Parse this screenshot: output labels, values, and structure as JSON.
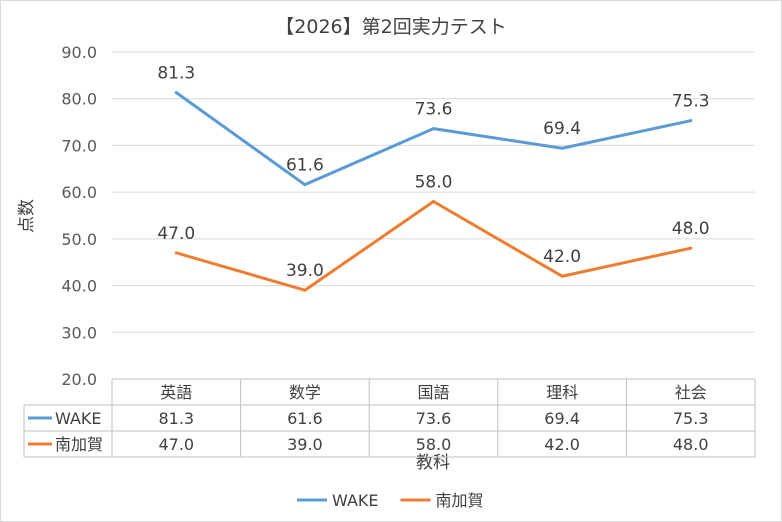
{
  "chart_data": {
    "type": "line",
    "title": "【2026】第2回実力テスト",
    "xlabel": "教科",
    "ylabel": "点数",
    "categories": [
      "英語",
      "数学",
      "国語",
      "理科",
      "社会"
    ],
    "ylim": [
      20,
      90
    ],
    "yticks": [
      "20.0",
      "30.0",
      "40.0",
      "50.0",
      "60.0",
      "70.0",
      "80.0",
      "90.0"
    ],
    "grid": true,
    "legend_position": "bottom",
    "data_table": true,
    "series": [
      {
        "name": "WAKE",
        "color": "#5b9bd5",
        "values": [
          81.3,
          61.6,
          73.6,
          69.4,
          75.3
        ],
        "labels": [
          "81.3",
          "61.6",
          "73.6",
          "69.4",
          "75.3"
        ]
      },
      {
        "name": "南加賀",
        "color": "#ed7d31",
        "values": [
          47.0,
          39.0,
          58.0,
          42.0,
          48.0
        ],
        "labels": [
          "47.0",
          "39.0",
          "58.0",
          "42.0",
          "48.0"
        ]
      }
    ]
  }
}
